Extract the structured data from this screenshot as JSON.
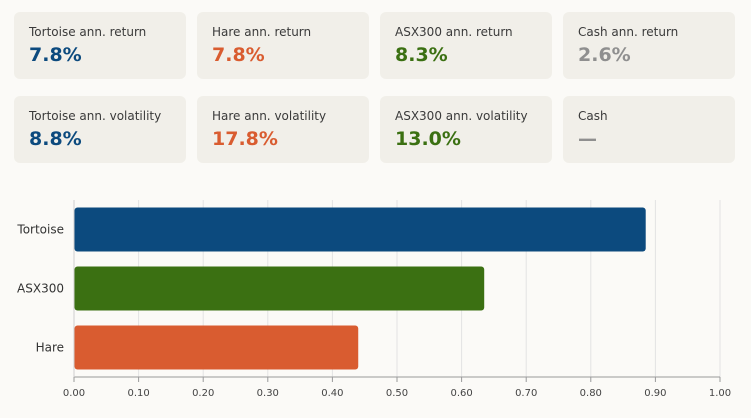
{
  "colors": {
    "tortoise": "#0c4a7e",
    "hare": "#d95c30",
    "asx300": "#3b7012",
    "cash": "#8f8f8f"
  },
  "stats": {
    "row1": [
      {
        "label": "Tortoise ann. return",
        "value": "7.8%",
        "color_key": "tortoise"
      },
      {
        "label": "Hare ann. return",
        "value": "7.8%",
        "color_key": "hare"
      },
      {
        "label": "ASX300 ann. return",
        "value": "8.3%",
        "color_key": "asx300"
      },
      {
        "label": "Cash ann. return",
        "value": "2.6%",
        "color_key": "cash"
      }
    ],
    "row2": [
      {
        "label": "Tortoise ann. volatility",
        "value": "8.8%",
        "color_key": "tortoise"
      },
      {
        "label": "Hare ann. volatility",
        "value": "17.8%",
        "color_key": "hare"
      },
      {
        "label": "ASX300 ann. volatility",
        "value": "13.0%",
        "color_key": "asx300"
      },
      {
        "label": "Cash",
        "value": "—",
        "color_key": "cash"
      }
    ]
  },
  "chart_data": {
    "type": "bar",
    "orientation": "horizontal",
    "categories": [
      "Tortoise",
      "ASX300",
      "Hare"
    ],
    "values": [
      0.885,
      0.635,
      0.44
    ],
    "bar_colors": [
      "#0c4a7e",
      "#3b7012",
      "#d95c30"
    ],
    "xlim": [
      0,
      1
    ],
    "xticks": [
      "0.00",
      "0.10",
      "0.20",
      "0.30",
      "0.40",
      "0.50",
      "0.60",
      "0.70",
      "0.80",
      "0.90",
      "1.00"
    ],
    "grid": true,
    "title": "",
    "xlabel": "",
    "ylabel": ""
  }
}
